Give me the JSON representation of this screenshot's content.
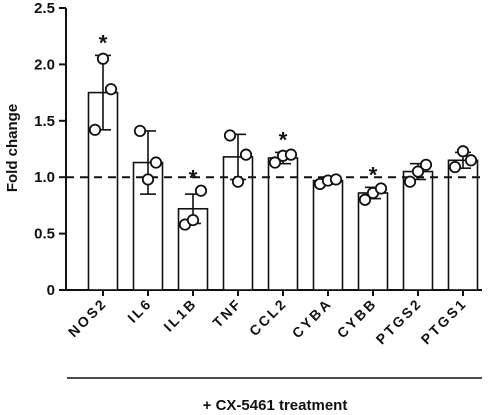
{
  "chart_data": {
    "type": "bar",
    "ylabel": "Fold change",
    "xlabel": "+ CX-5461 treatment",
    "ylim": [
      0,
      2.5
    ],
    "yticks": [
      "0",
      "0.5",
      "1.0",
      "1.5",
      "2.0",
      "2.5"
    ],
    "reference_line": 1.0,
    "categories": [
      "NOS2",
      "IL6",
      "IL1B",
      "TNF",
      "CCL2",
      "CYBA",
      "CYBB",
      "PTGS2",
      "PTGS1"
    ],
    "values": [
      1.75,
      1.13,
      0.72,
      1.18,
      1.17,
      0.97,
      0.86,
      1.05,
      1.15
    ],
    "error": [
      0.33,
      0.28,
      0.13,
      0.2,
      0.05,
      0.03,
      0.05,
      0.07,
      0.07
    ],
    "points": [
      [
        1.42,
        2.05,
        1.78
      ],
      [
        1.41,
        0.98,
        1.13
      ],
      [
        0.58,
        0.62,
        0.88
      ],
      [
        1.37,
        0.96,
        1.2
      ],
      [
        1.13,
        1.19,
        1.2
      ],
      [
        0.94,
        0.97,
        0.98
      ],
      [
        0.8,
        0.86,
        0.9
      ],
      [
        0.96,
        1.05,
        1.11
      ],
      [
        1.09,
        1.23,
        1.15
      ]
    ],
    "significance": [
      "*",
      "",
      "*",
      "",
      "*",
      "",
      "*",
      "",
      ""
    ],
    "grid": false
  }
}
